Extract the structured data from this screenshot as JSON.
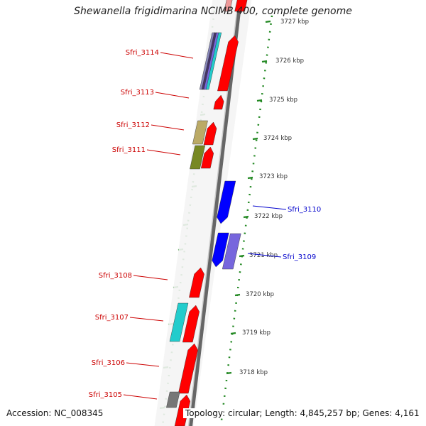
{
  "title": "Shewanella frigidimarina NCIMB 400, complete genome",
  "footer": {
    "accession": "Accession: NC_008345",
    "summary": "Topology: circular; Length: 4,845,257 bp; Genes: 4,161"
  },
  "colors": {
    "forward_strand_label": "#cc0000",
    "reverse_strand_label": "#0000cc",
    "forward_gene": "#ff0000",
    "reverse_gene": "#0000ff",
    "backbone": "#888888",
    "tick_dots": "#228822",
    "gene_palette": [
      "#ff0000",
      "#0000ff",
      "#7766dd",
      "#bbaa66",
      "#778822",
      "#22cccc",
      "#777777",
      "#443366"
    ]
  },
  "scale_ticks": [
    {
      "label": "3727 kbp"
    },
    {
      "label": "3726 kbp"
    },
    {
      "label": "3725 kbp"
    },
    {
      "label": "3724 kbp"
    },
    {
      "label": "3723 kbp"
    },
    {
      "label": "3722 kbp"
    },
    {
      "label": "3721 kbp"
    },
    {
      "label": "3720 kbp"
    },
    {
      "label": "3719 kbp"
    },
    {
      "label": "3718 kbp"
    }
  ],
  "gene_labels": [
    {
      "label": "Sfri_3114",
      "strand": "forward"
    },
    {
      "label": "Sfri_3113",
      "strand": "forward"
    },
    {
      "label": "Sfri_3112",
      "strand": "forward"
    },
    {
      "label": "Sfri_3111",
      "strand": "forward"
    },
    {
      "label": "Sfri_3110",
      "strand": "reverse"
    },
    {
      "label": "Sfri_3109",
      "strand": "reverse"
    },
    {
      "label": "Sfri_3108",
      "strand": "forward"
    },
    {
      "label": "Sfri_3107",
      "strand": "forward"
    },
    {
      "label": "Sfri_3106",
      "strand": "forward"
    },
    {
      "label": "Sfri_3105",
      "strand": "forward"
    }
  ]
}
